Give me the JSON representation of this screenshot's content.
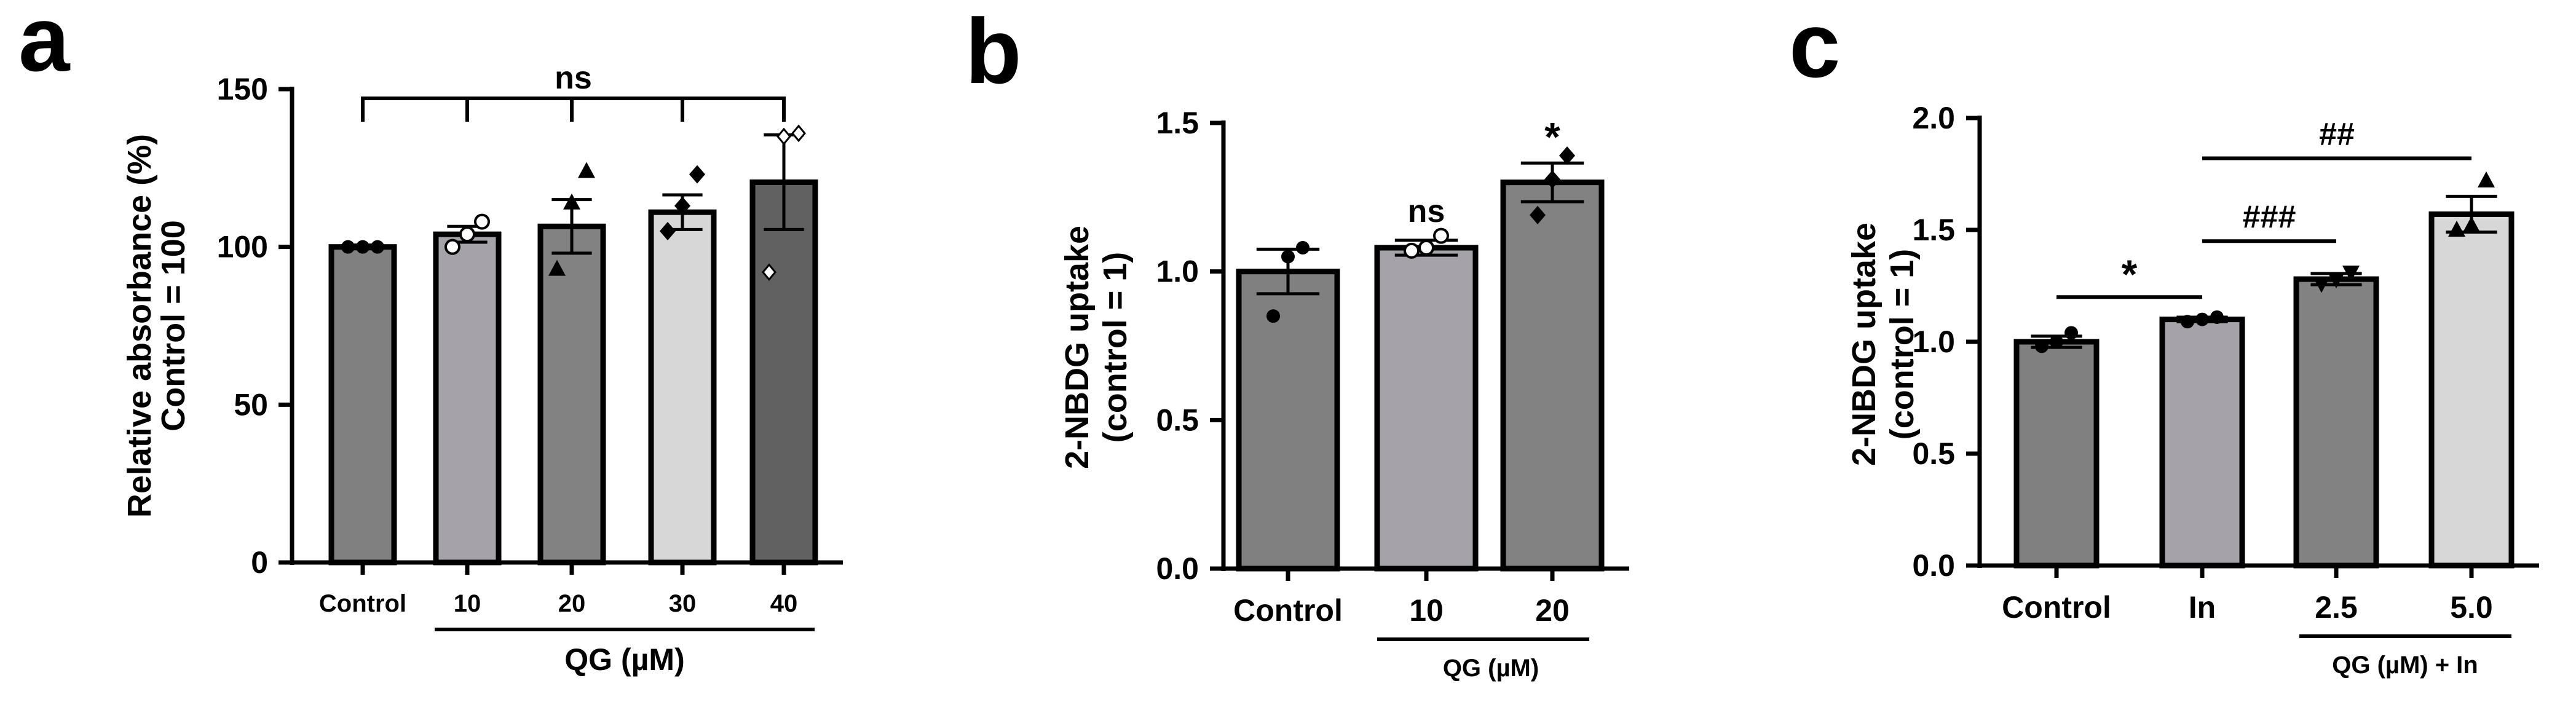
{
  "chart_data": [
    {
      "panel": "a",
      "type": "bar",
      "ylabel_line1": "Relative absorbance (%)",
      "ylabel_line2": "Control = 100",
      "ylim": [
        0,
        150
      ],
      "yticks": [
        "0",
        "50",
        "100",
        "150"
      ],
      "categories": [
        "Control",
        "10",
        "20",
        "30",
        "40"
      ],
      "group_label": "QG (µM)",
      "values": [
        100,
        104,
        106.5,
        111,
        120.5
      ],
      "errors": [
        0.6,
        2.5,
        8.5,
        5.5,
        15
      ],
      "colors": [
        "#808080",
        "#a6a2aa",
        "#828282",
        "#d7d7d7",
        "#616161"
      ],
      "points": [
        [
          100,
          100,
          100
        ],
        [
          100,
          104,
          108
        ],
        [
          93,
          114,
          124
        ],
        [
          105,
          113,
          123
        ],
        [
          92,
          135,
          136
        ]
      ],
      "markers": [
        "circle",
        "circle-open",
        "triangle",
        "diamond",
        "diamond-open"
      ],
      "significance": [
        {
          "label": "ns",
          "type": "bracket-all"
        }
      ]
    },
    {
      "panel": "b",
      "type": "bar",
      "ylabel_line1": "2-NBDG uptake",
      "ylabel_line2": "(control = 1)",
      "ylim": [
        0,
        1.5
      ],
      "yticks": [
        "0.0",
        "0.5",
        "1.0",
        "1.5"
      ],
      "categories": [
        "Control",
        "10",
        "20"
      ],
      "group_label": "QG (µM)",
      "values": [
        1.0,
        1.08,
        1.3
      ],
      "errors": [
        0.075,
        0.025,
        0.065
      ],
      "colors": [
        "#808080",
        "#a6a2aa",
        "#828282"
      ],
      "points": [
        [
          0.85,
          1.05,
          1.08
        ],
        [
          1.07,
          1.08,
          1.12
        ],
        [
          1.19,
          1.31,
          1.39
        ]
      ],
      "markers": [
        "circle",
        "circle-open",
        "diamond"
      ],
      "significance": [
        {
          "label": "ns",
          "bar": 1
        },
        {
          "label": "*",
          "bar": 2
        }
      ]
    },
    {
      "panel": "c",
      "type": "bar",
      "ylabel_line1": "2-NBDG uptake",
      "ylabel_line2": "(control = 1)",
      "ylim": [
        0,
        2.0
      ],
      "yticks": [
        "0.0",
        "0.5",
        "1.0",
        "1.5",
        "2.0"
      ],
      "categories": [
        "Control",
        "In",
        "2.5",
        "5.0"
      ],
      "group_label": "QG (µM) + In",
      "values": [
        1.0,
        1.1,
        1.28,
        1.57
      ],
      "errors": [
        0.025,
        0.01,
        0.025,
        0.08
      ],
      "colors": [
        "#808080",
        "#a6a2aa",
        "#828282",
        "#d7d7d7"
      ],
      "points": [
        [
          0.98,
          1.0,
          1.04
        ],
        [
          1.09,
          1.1,
          1.11
        ],
        [
          1.26,
          1.28,
          1.31
        ],
        [
          1.5,
          1.52,
          1.72
        ]
      ],
      "markers": [
        "circle",
        "circle",
        "triangle-down",
        "triangle"
      ],
      "significance": [
        {
          "label": "*",
          "from": 0,
          "to": 1,
          "y": 1.2
        },
        {
          "label": "###",
          "from": 1,
          "to": 2,
          "y": 1.45
        },
        {
          "label": "##",
          "from": 1,
          "to": 3,
          "y": 1.82
        }
      ]
    }
  ]
}
